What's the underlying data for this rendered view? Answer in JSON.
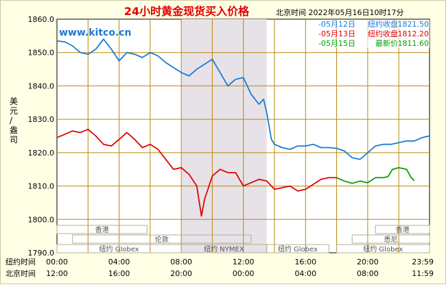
{
  "chart_data": {
    "type": "line",
    "title": "24小时黄金现货买入价格",
    "timestamp": "北京时间  2022年05月16日10时17分",
    "watermark": "www.kitco.cn",
    "ylabel": "美元/盎司",
    "ylim": [
      1790,
      1860
    ],
    "yticks": [
      "1860.0",
      "1850.0",
      "1840.0",
      "1830.0",
      "1820.0",
      "1810.0",
      "1800.0",
      "1790.0"
    ],
    "x_axis_ny": {
      "label": "纽约时间",
      "ticks": [
        "00:00",
        "04:00",
        "08:00",
        "12:00",
        "16:00",
        "20:00",
        "23:59"
      ]
    },
    "x_axis_bj": {
      "label": "北京时间",
      "ticks": [
        "12:00",
        "16:00",
        "20:00",
        "00:00",
        "04:00",
        "08:00",
        "11:59"
      ]
    },
    "legend": [
      {
        "date": "-05月12日",
        "label": "纽约收盘",
        "value": "1821.50",
        "color": "#1a7ad6"
      },
      {
        "date": "-05月13日",
        "label": "纽约收盘",
        "value": "1812.20",
        "color": "#e00000"
      },
      {
        "date": "-05月15日",
        "label": "最新价",
        "value": "1811.60",
        "color": "#00a000"
      }
    ],
    "shaded_x": [
      8,
      13.5
    ],
    "sessions": [
      {
        "label": "香港",
        "x": [
          0,
          5.8
        ],
        "level": 3
      },
      {
        "label": "伦敦",
        "x": [
          1,
          12.5
        ],
        "level": 2
      },
      {
        "label": "纽约 Globex",
        "x": [
          0,
          8
        ],
        "level": 1
      },
      {
        "label": "纽约 NYMEX",
        "x": [
          8,
          13.5
        ],
        "level": 1
      },
      {
        "label": "纽约 Globex",
        "x": [
          13.5,
          17.5
        ],
        "level": 1
      },
      {
        "label": "香港",
        "x": [
          20.5,
          23.98
        ],
        "level": 3
      },
      {
        "label": "悉尼",
        "x": [
          19,
          23.98
        ],
        "level": 2
      },
      {
        "label": "纽约 Globex",
        "x": [
          18,
          23.98
        ],
        "level": 1
      }
    ],
    "series": [
      {
        "color": "#1a7ad6",
        "x": [
          0,
          0.5,
          1,
          1.5,
          2,
          2.5,
          3,
          3.5,
          4,
          4.5,
          5,
          5.5,
          6,
          6.5,
          7,
          7.5,
          8,
          8.5,
          9,
          9.5,
          10,
          10.5,
          11,
          11.5,
          12,
          12.5,
          13,
          13.3,
          13.5,
          13.8,
          14,
          14.5,
          15,
          15.5,
          16,
          16.5,
          17,
          17.5,
          18,
          18.5,
          19,
          19.5,
          20,
          20.5,
          21,
          21.5,
          22,
          22.5,
          23,
          23.5,
          23.98
        ],
        "y": [
          1853.5,
          1853.2,
          1852,
          1850,
          1849.5,
          1851,
          1854,
          1851,
          1847.5,
          1850,
          1849.5,
          1848.5,
          1850,
          1849,
          1847,
          1845.5,
          1844,
          1843,
          1845,
          1846.5,
          1848,
          1844,
          1840,
          1842,
          1842.5,
          1837.5,
          1834.5,
          1836,
          1832,
          1824,
          1822.5,
          1821.5,
          1821,
          1822,
          1822,
          1822.5,
          1821.5,
          1821.5,
          1821.3,
          1820.5,
          1818.5,
          1818,
          1820,
          1822,
          1822.5,
          1822.5,
          1823,
          1823.5,
          1823.5,
          1824.5,
          1825
        ]
      },
      {
        "color": "#e00000",
        "x": [
          0,
          0.5,
          1,
          1.5,
          2,
          2.5,
          3,
          3.5,
          4,
          4.5,
          5,
          5.5,
          6,
          6.5,
          7,
          7.5,
          8,
          8.5,
          9,
          9.3,
          9.5,
          10,
          10.5,
          11,
          11.5,
          12,
          12.5,
          13,
          13.5,
          14,
          14.5,
          15,
          15.5,
          16,
          16.5,
          17,
          17.5,
          18
        ],
        "y": [
          1824.5,
          1825.5,
          1826.5,
          1826,
          1827,
          1825,
          1822.5,
          1822,
          1824,
          1826,
          1824,
          1821.5,
          1822.5,
          1821,
          1818,
          1815,
          1815.5,
          1813.5,
          1810,
          1801,
          1806,
          1813,
          1815,
          1814,
          1814,
          1810,
          1811,
          1812,
          1811.5,
          1809,
          1809.5,
          1810,
          1808.5,
          1809,
          1810.5,
          1812,
          1812.5,
          1812.5
        ]
      },
      {
        "color": "#00a000",
        "x": [
          18,
          18.5,
          19,
          19.5,
          20,
          20.5,
          21,
          21.3,
          21.6,
          22,
          22.5,
          22.8,
          23
        ],
        "y": [
          1812.5,
          1811.5,
          1810.8,
          1811.5,
          1811,
          1812.5,
          1812.5,
          1812.8,
          1815,
          1815.5,
          1815,
          1812.5,
          1811.6
        ]
      }
    ]
  }
}
